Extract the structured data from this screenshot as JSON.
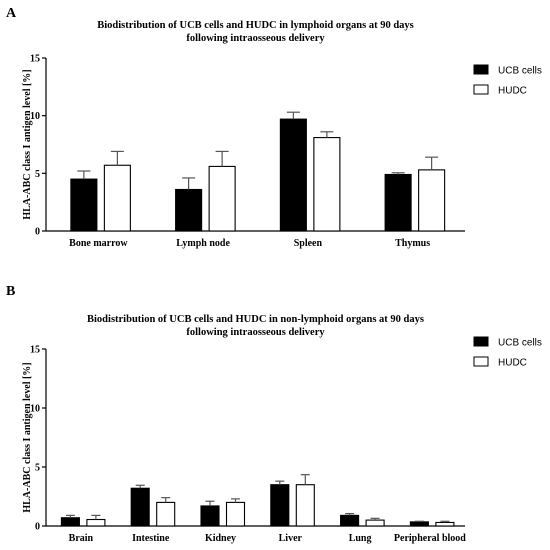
{
  "chart_data": [
    {
      "type": "bar",
      "panel_label": "A",
      "title": [
        "Biodistribution of UCB cells and HUDC in lymphoid organs at 90 days",
        "following intraosseous delivery"
      ],
      "xlabel": "",
      "ylabel": "HLA-ABC class I antigen level [%]",
      "ylim": [
        0,
        15
      ],
      "yticks": [
        0,
        5,
        10,
        15
      ],
      "grid": false,
      "legend_position": "top-right",
      "categories": [
        "Bone marrow",
        "Lymph node",
        "Spleen",
        "Thymus"
      ],
      "series": [
        {
          "name": "UCB cells",
          "color": "#000000",
          "values": [
            4.5,
            3.6,
            9.7,
            4.9
          ],
          "errors": [
            0.7,
            1.0,
            0.6,
            0.15
          ]
        },
        {
          "name": "HUDC",
          "color": "#ffffff",
          "values": [
            5.7,
            5.6,
            8.1,
            5.3
          ],
          "errors": [
            1.2,
            1.3,
            0.5,
            1.1
          ]
        }
      ]
    },
    {
      "type": "bar",
      "panel_label": "B",
      "title": [
        "Biodistribution of UCB cells and HUDC in non-lymphoid organs at 90 days",
        "following intraosseous delivery"
      ],
      "xlabel": "",
      "ylabel": "HLA-ABC class I antigen level [%]",
      "ylim": [
        0,
        15
      ],
      "yticks": [
        0,
        5,
        10,
        15
      ],
      "grid": false,
      "legend_position": "top-right",
      "categories": [
        "Brain",
        "Intestine",
        "Kidney",
        "Liver",
        "Lung",
        "Peripheral blood"
      ],
      "series": [
        {
          "name": "UCB cells",
          "color": "#000000",
          "values": [
            0.7,
            3.2,
            1.7,
            3.5,
            0.9,
            0.35
          ],
          "errors": [
            0.2,
            0.25,
            0.4,
            0.3,
            0.15,
            0.05
          ]
        },
        {
          "name": "HUDC",
          "color": "#ffffff",
          "values": [
            0.55,
            2.0,
            2.0,
            3.5,
            0.5,
            0.3
          ],
          "errors": [
            0.35,
            0.4,
            0.3,
            0.85,
            0.15,
            0.1
          ]
        }
      ]
    }
  ]
}
